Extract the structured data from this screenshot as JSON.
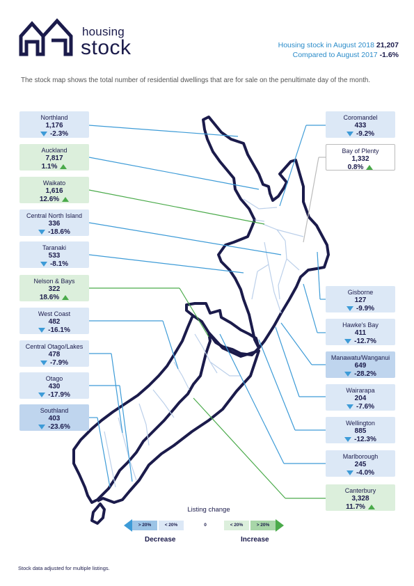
{
  "header": {
    "logo_word1": "housing",
    "logo_word2": "stock",
    "stock_label": "Housing stock in August 2018",
    "stock_value": "21,207",
    "compare_label": "Compared to August 2017",
    "compare_value": "-1.6%"
  },
  "intro": "The stock map shows the total number of residential dwellings that are for sale on the penultimate day of the month.",
  "regions_left": [
    {
      "name": "Northland",
      "count": "1,176",
      "change": "-2.3%",
      "dir": "down"
    },
    {
      "name": "Auckland",
      "count": "7,817",
      "change": "1.1%",
      "dir": "up"
    },
    {
      "name": "Waikato",
      "count": "1,616",
      "change": "12.6%",
      "dir": "up"
    },
    {
      "name": "Central North Island",
      "count": "336",
      "change": "-18.6%",
      "dir": "down"
    },
    {
      "name": "Taranaki",
      "count": "533",
      "change": "-8.1%",
      "dir": "down"
    },
    {
      "name": "Nelson & Bays",
      "count": "322",
      "change": "18.6%",
      "dir": "up"
    },
    {
      "name": "West Coast",
      "count": "482",
      "change": "-16.1%",
      "dir": "down"
    },
    {
      "name": "Central Otago/Lakes",
      "count": "478",
      "change": "-7.9%",
      "dir": "down"
    },
    {
      "name": "Otago",
      "count": "430",
      "change": "-17.9%",
      "dir": "down"
    },
    {
      "name": "Southland",
      "count": "403",
      "change": "-23.6%",
      "dir": "down"
    }
  ],
  "regions_right": [
    {
      "name": "Coromandel",
      "count": "433",
      "change": "-9.2%",
      "dir": "down"
    },
    {
      "name": "Bay of Plenty",
      "count": "1,332",
      "change": "0.8%",
      "dir": "up"
    },
    {
      "name": "Gisborne",
      "count": "127",
      "change": "-9.9%",
      "dir": "down"
    },
    {
      "name": "Hawke's Bay",
      "count": "411",
      "change": "-12.7%",
      "dir": "down"
    },
    {
      "name": "Manawatu/Wanganui",
      "count": "649",
      "change": "-28.2%",
      "dir": "down"
    },
    {
      "name": "Wairarapa",
      "count": "204",
      "change": "-7.6%",
      "dir": "down"
    },
    {
      "name": "Wellington",
      "count": "885",
      "change": "-12.3%",
      "dir": "down"
    },
    {
      "name": "Marlborough",
      "count": "245",
      "change": "-4.0%",
      "dir": "down"
    },
    {
      "name": "Canterbury",
      "count": "3,328",
      "change": "11.7%",
      "dir": "up"
    }
  ],
  "legend": {
    "title": "Listing change",
    "dec_big": "> 20%",
    "dec_small": "< 20%",
    "zero": "0",
    "inc_small": "< 20%",
    "inc_big": "> 20%",
    "decrease": "Decrease",
    "increase": "Increase"
  },
  "footnote": "Stock data adjusted for multiple listings.",
  "colors": {
    "navy": "#1b1b4b",
    "blue_accent": "#2a8bc9",
    "decrease_line": "#3d9bd7",
    "increase_line": "#4aaa4a",
    "neutral_line": "#bbbbbb",
    "dec_small_fill": "#dce8f6",
    "dec_big_fill": "#bfd5ee",
    "inc_small_fill": "#dcefdc"
  }
}
